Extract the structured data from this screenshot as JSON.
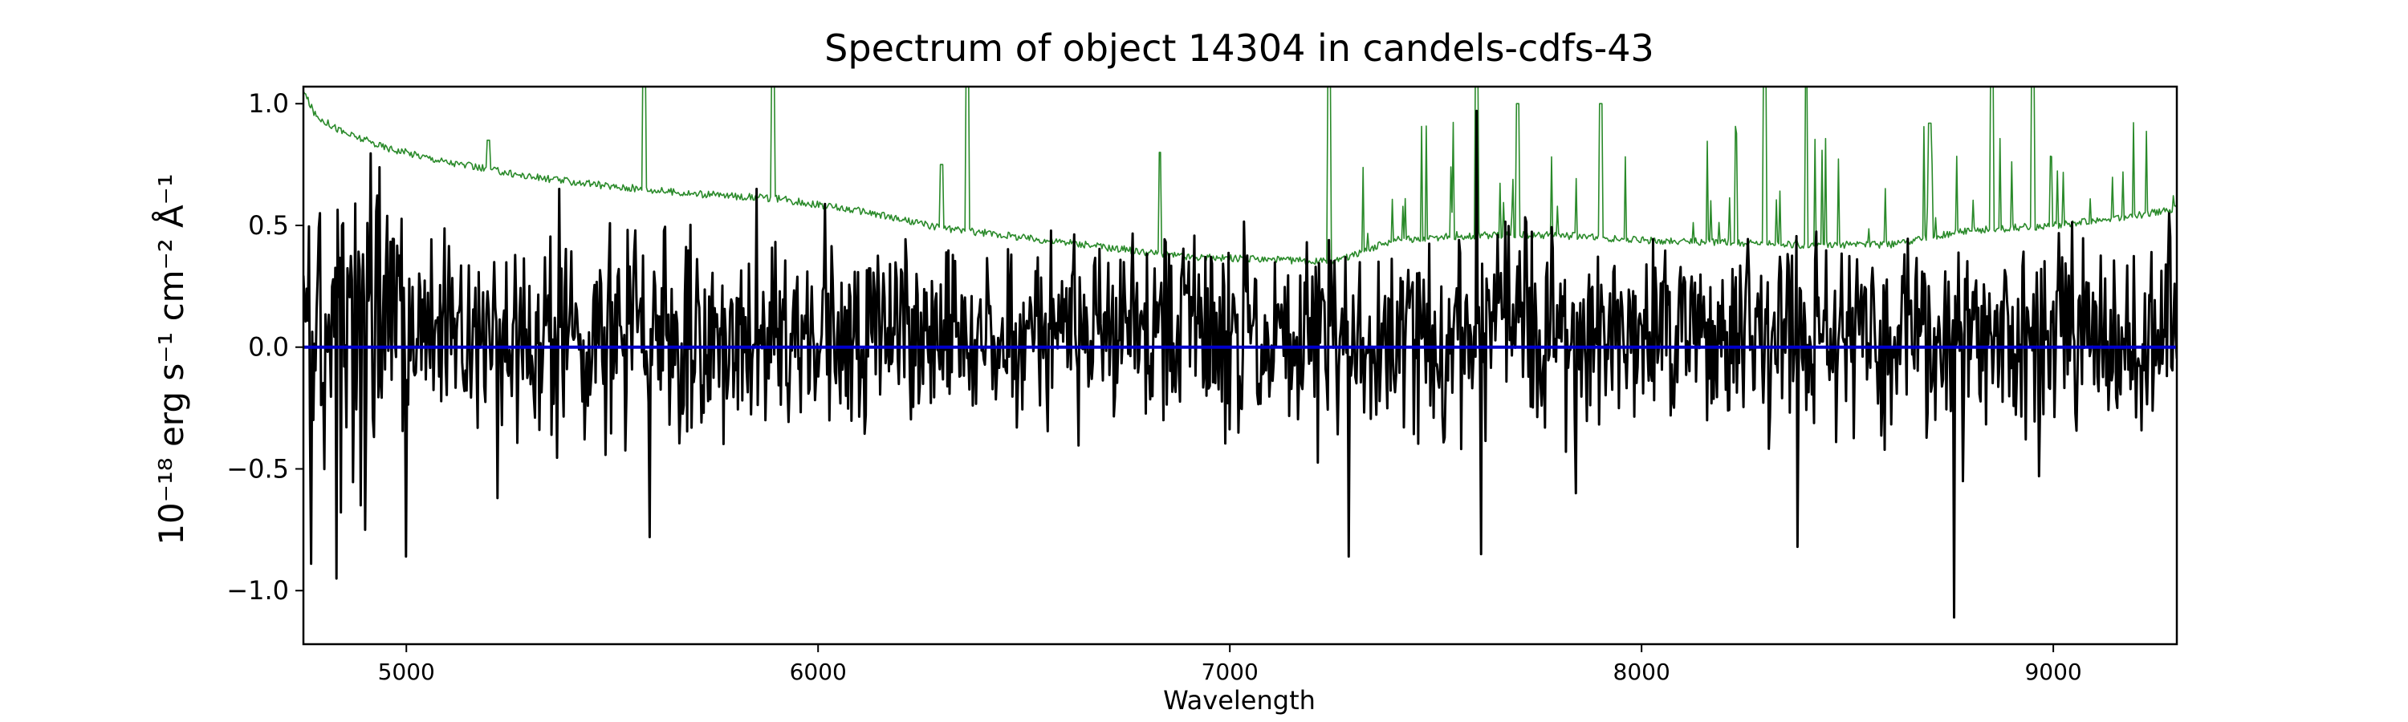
{
  "chart_data": {
    "type": "line",
    "title": "Spectrum of object 14304 in candels-cdfs-43",
    "xlabel": "Wavelength",
    "ylabel": "10⁻¹⁸ erg s⁻¹ cm⁻² Å⁻¹",
    "xlim": [
      4750,
      9300
    ],
    "ylim": [
      -1.22,
      1.07
    ],
    "xticks": [
      5000,
      6000,
      7000,
      8000,
      9000
    ],
    "yticks": [
      -1.0,
      -0.5,
      0.0,
      0.5,
      1.0
    ],
    "xtick_labels": [
      "5000",
      "6000",
      "7000",
      "8000",
      "9000"
    ],
    "ytick_labels": [
      "−1.0",
      "−0.5",
      "0.0",
      "0.5",
      "1.0"
    ],
    "grid": false,
    "legend": "none",
    "series": [
      {
        "style": "noise",
        "color": "#2a8a2a",
        "x": [
          4750,
          4780,
          4850,
          4950,
          5100,
          5300,
          5500,
          5700,
          5900,
          6100,
          6300,
          6500,
          6700,
          6900,
          7100,
          7250,
          7400,
          7600,
          7800,
          8000,
          8200,
          8400,
          8600,
          8800,
          9000,
          9200,
          9300
        ],
        "y": [
          1.05,
          0.95,
          0.88,
          0.82,
          0.76,
          0.7,
          0.66,
          0.63,
          0.61,
          0.56,
          0.49,
          0.45,
          0.41,
          0.37,
          0.36,
          0.35,
          0.44,
          0.46,
          0.46,
          0.44,
          0.43,
          0.42,
          0.42,
          0.48,
          0.5,
          0.54,
          0.57
        ]
      },
      {
        "style": "flux",
        "color": "#000000",
        "x_range": [
          4750,
          9300
        ],
        "points": 1700,
        "amplitude": 0.28,
        "spikes": [
          {
            "x": 4770,
            "y": -0.89
          },
          {
            "x": 4790,
            "y": 0.55
          },
          {
            "x": 4830,
            "y": -0.95
          },
          {
            "x": 4845,
            "y": 0.5
          },
          {
            "x": 4900,
            "y": -0.75
          },
          {
            "x": 5000,
            "y": -0.86
          },
          {
            "x": 5220,
            "y": -0.62
          },
          {
            "x": 5370,
            "y": 0.65
          },
          {
            "x": 5590,
            "y": -0.78
          },
          {
            "x": 5850,
            "y": 0.65
          },
          {
            "x": 6470,
            "y": 0.38
          },
          {
            "x": 7290,
            "y": -0.86
          },
          {
            "x": 7600,
            "y": 0.97
          },
          {
            "x": 7610,
            "y": -0.85
          },
          {
            "x": 7840,
            "y": -0.6
          },
          {
            "x": 8380,
            "y": -0.82
          },
          {
            "x": 8760,
            "y": -1.11
          },
          {
            "x": 8780,
            "y": -0.55
          },
          {
            "x": 9280,
            "y": 0.55
          }
        ]
      },
      {
        "style": "zero-line",
        "color": "#0000cc",
        "x": [
          4750,
          9300
        ],
        "y": [
          0.0,
          0.0
        ]
      }
    ]
  }
}
